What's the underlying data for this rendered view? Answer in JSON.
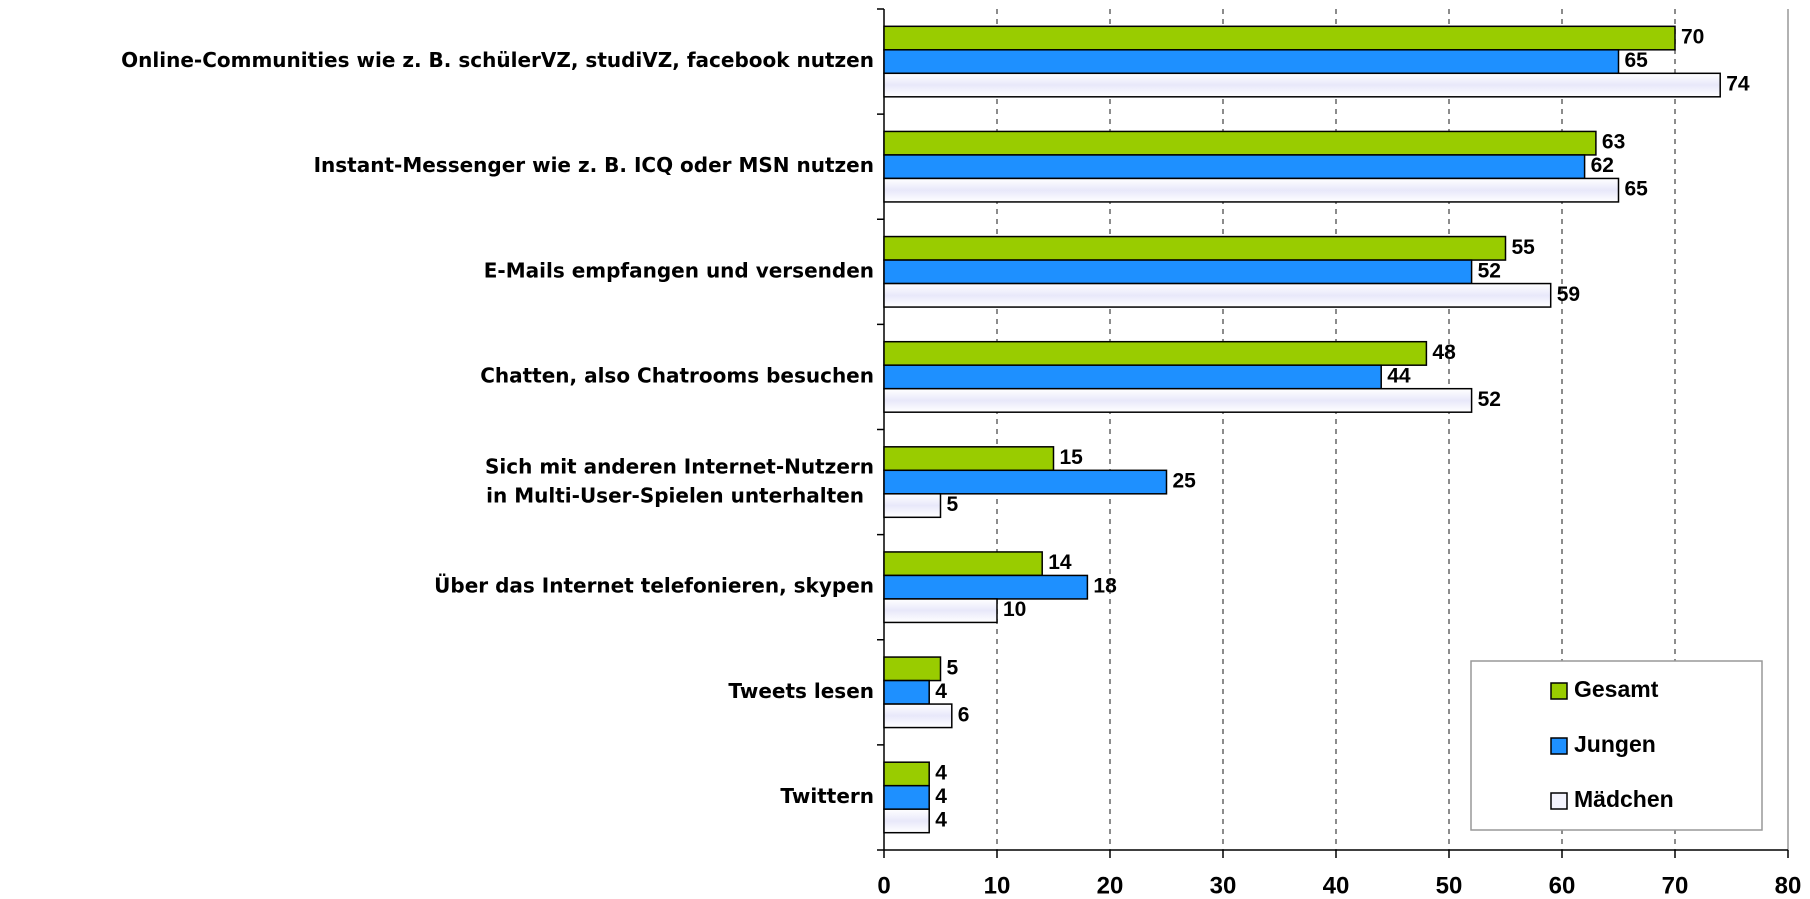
{
  "chart_data": {
    "type": "bar",
    "orientation": "horizontal",
    "categories": [
      "Online-Communities wie z. B. schülerVZ, studiVZ, facebook nutzen",
      "Instant-Messenger wie z. B. ICQ oder MSN nutzen",
      "E-Mails empfangen und versenden",
      "Chatten, also Chatrooms besuchen",
      "Sich mit anderen Internet-Nutzern\nin Multi-User-Spielen unterhalten",
      "Über das Internet telefonieren, skypen",
      "Tweets lesen",
      "Twittern"
    ],
    "series": [
      {
        "name": "Gesamt",
        "color": "#99cc00",
        "values": [
          70,
          63,
          55,
          48,
          15,
          14,
          5,
          4
        ]
      },
      {
        "name": "Jungen",
        "color": "#1e90ff",
        "values": [
          65,
          62,
          52,
          44,
          25,
          18,
          4,
          4
        ]
      },
      {
        "name": "Mädchen",
        "color": "#eeeefc",
        "values": [
          74,
          65,
          59,
          52,
          5,
          10,
          6,
          4
        ]
      }
    ],
    "xlim": [
      0,
      80
    ],
    "xticks": [
      0,
      10,
      20,
      30,
      40,
      50,
      60,
      70,
      80
    ],
    "grid": true,
    "legend": "lower right"
  }
}
